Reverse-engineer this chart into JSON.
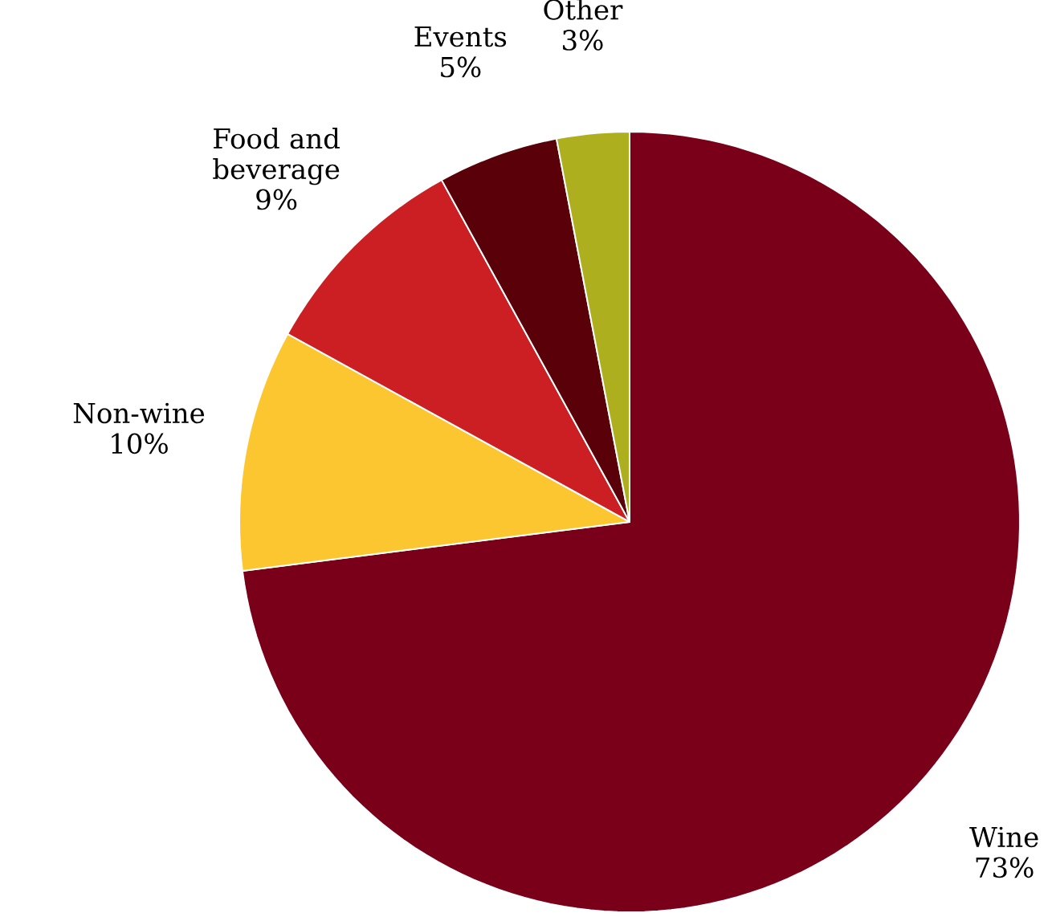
{
  "chart_data": {
    "type": "pie",
    "categories": [
      "Wine",
      "Non-wine",
      "Food and beverage",
      "Events",
      "Other"
    ],
    "values": [
      73,
      10,
      9,
      5,
      3
    ],
    "value_labels": [
      "73%",
      "10%",
      "9%",
      "5%",
      "3%"
    ],
    "colors": [
      "#7a0019",
      "#fcc631",
      "#cc1f24",
      "#5a0008",
      "#aeaf1f"
    ]
  }
}
